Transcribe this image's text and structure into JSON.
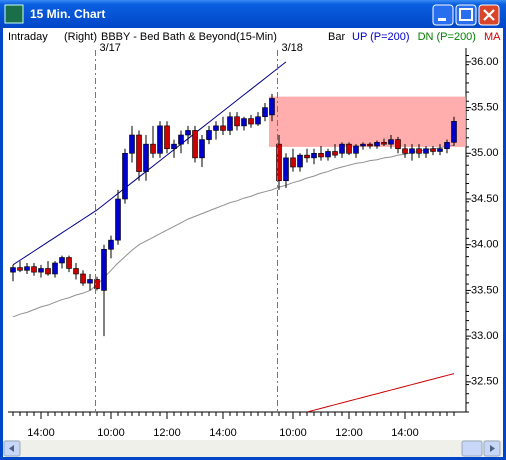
{
  "window": {
    "title": "15 Min. Chart"
  },
  "header": {
    "mode": "Intraday",
    "side": "(Right)",
    "symbol": "BBBY - Bed Bath & Beyond",
    "interval": "(15-Min)",
    "style": "Bar"
  },
  "chart_data": {
    "type": "candlestick",
    "categories": [
      null,
      null,
      null,
      null,
      "14:00",
      null,
      null,
      null,
      null,
      null,
      null,
      null,
      null,
      null,
      "10:00",
      null,
      null,
      null,
      null,
      null,
      null,
      null,
      "12:00",
      null,
      null,
      null,
      null,
      null,
      null,
      null,
      "14:00",
      null,
      null,
      null,
      null,
      null,
      null,
      null,
      null,
      null,
      "10:00",
      null,
      null,
      null,
      null,
      null,
      null,
      null,
      "12:00",
      null,
      null,
      null,
      null,
      null,
      null,
      null,
      "14:00",
      null,
      null,
      null,
      null,
      null,
      null,
      null
    ],
    "sessions": [
      "3/17",
      "3/18"
    ],
    "ohlc": [
      [
        33.7,
        33.78,
        33.6,
        33.75
      ],
      [
        33.75,
        33.82,
        33.7,
        33.72
      ],
      [
        33.72,
        33.8,
        33.68,
        33.76
      ],
      [
        33.76,
        33.8,
        33.66,
        33.7
      ],
      [
        33.7,
        33.78,
        33.64,
        33.74
      ],
      [
        33.74,
        33.82,
        33.66,
        33.68
      ],
      [
        33.68,
        33.82,
        33.64,
        33.8
      ],
      [
        33.8,
        33.88,
        33.74,
        33.86
      ],
      [
        33.86,
        33.88,
        33.7,
        33.74
      ],
      [
        33.74,
        33.8,
        33.62,
        33.68
      ],
      [
        33.68,
        33.72,
        33.55,
        33.58
      ],
      [
        33.58,
        33.68,
        33.5,
        33.62
      ],
      [
        33.62,
        33.65,
        33.5,
        33.52
      ],
      [
        33.5,
        34.0,
        33.0,
        33.95
      ],
      [
        33.95,
        34.1,
        33.85,
        34.05
      ],
      [
        34.05,
        34.6,
        34.0,
        34.5
      ],
      [
        34.5,
        35.05,
        34.45,
        35.0
      ],
      [
        35.0,
        35.3,
        34.9,
        35.2
      ],
      [
        35.2,
        35.25,
        34.7,
        34.8
      ],
      [
        34.8,
        35.2,
        34.7,
        35.1
      ],
      [
        35.1,
        35.3,
        34.95,
        35.0
      ],
      [
        35.0,
        35.35,
        34.95,
        35.3
      ],
      [
        35.3,
        35.35,
        35.0,
        35.05
      ],
      [
        35.05,
        35.15,
        34.95,
        35.1
      ],
      [
        35.1,
        35.25,
        35.0,
        35.2
      ],
      [
        35.2,
        35.3,
        35.1,
        35.25
      ],
      [
        35.25,
        35.3,
        34.9,
        34.95
      ],
      [
        34.95,
        35.2,
        34.85,
        35.15
      ],
      [
        35.15,
        35.3,
        35.1,
        35.25
      ],
      [
        35.25,
        35.35,
        35.15,
        35.3
      ],
      [
        35.3,
        35.4,
        35.2,
        35.25
      ],
      [
        35.25,
        35.45,
        35.2,
        35.4
      ],
      [
        35.4,
        35.45,
        35.25,
        35.3
      ],
      [
        35.3,
        35.4,
        35.25,
        35.38
      ],
      [
        35.38,
        35.42,
        35.28,
        35.32
      ],
      [
        35.32,
        35.45,
        35.3,
        35.4
      ],
      [
        35.4,
        35.55,
        35.35,
        35.5
      ],
      [
        35.42,
        35.65,
        35.35,
        35.6
      ],
      [
        35.1,
        35.2,
        34.6,
        34.7
      ],
      [
        34.7,
        35.0,
        34.62,
        34.95
      ],
      [
        34.95,
        35.05,
        34.8,
        34.85
      ],
      [
        34.85,
        35.0,
        34.8,
        34.98
      ],
      [
        34.98,
        35.05,
        34.9,
        34.95
      ],
      [
        34.95,
        35.05,
        34.88,
        35.0
      ],
      [
        35.0,
        35.08,
        34.92,
        34.96
      ],
      [
        34.96,
        35.05,
        34.92,
        35.02
      ],
      [
        35.02,
        35.1,
        34.95,
        34.98
      ],
      [
        35.0,
        35.12,
        34.95,
        35.1
      ],
      [
        35.1,
        35.12,
        34.98,
        35.0
      ],
      [
        35.0,
        35.1,
        34.95,
        35.08
      ],
      [
        35.08,
        35.12,
        35.04,
        35.1
      ],
      [
        35.1,
        35.12,
        35.05,
        35.08
      ],
      [
        35.08,
        35.14,
        35.05,
        35.12
      ],
      [
        35.12,
        35.16,
        35.08,
        35.1
      ],
      [
        35.1,
        35.2,
        35.05,
        35.15
      ],
      [
        35.15,
        35.18,
        35.0,
        35.05
      ],
      [
        35.05,
        35.1,
        34.95,
        35.0
      ],
      [
        35.0,
        35.1,
        34.92,
        35.05
      ],
      [
        35.05,
        35.1,
        34.95,
        35.0
      ],
      [
        35.0,
        35.08,
        34.95,
        35.05
      ],
      [
        35.05,
        35.08,
        34.98,
        35.02
      ],
      [
        35.02,
        35.1,
        34.98,
        35.05
      ],
      [
        35.05,
        35.15,
        35.0,
        35.12
      ],
      [
        35.12,
        35.4,
        35.08,
        35.35
      ]
    ],
    "up_color": "#0000cc",
    "down_color": "#cc0000",
    "series": [
      {
        "name": "UP (P=200)",
        "color": "#00008b",
        "legend_color": "#0000cc",
        "values": [
          33.78,
          33.83,
          33.88,
          33.93,
          33.98,
          34.03,
          34.08,
          34.13,
          34.18,
          34.23,
          34.28,
          34.33,
          34.38,
          34.44,
          34.5,
          34.56,
          34.62,
          34.68,
          34.74,
          34.8,
          34.86,
          34.92,
          34.98,
          35.04,
          35.1,
          35.16,
          35.22,
          35.28,
          35.34,
          35.4,
          35.46,
          35.52,
          35.58,
          35.64,
          35.7,
          35.76,
          35.82,
          35.88,
          35.94,
          36.0,
          null,
          null,
          null,
          null,
          null,
          null,
          null,
          null,
          null,
          null,
          null,
          null,
          null,
          null,
          null,
          null,
          null,
          null,
          null,
          null,
          null,
          null,
          null,
          null
        ]
      },
      {
        "name": "DN (P=200)",
        "color": "#909090",
        "legend_color": "#008000",
        "values": [
          33.21,
          33.24,
          33.26,
          33.29,
          33.32,
          33.34,
          33.37,
          33.4,
          33.42,
          33.45,
          33.47,
          33.5,
          33.56,
          33.64,
          33.72,
          33.8,
          33.87,
          33.94,
          34.0,
          34.04,
          34.08,
          34.12,
          34.16,
          34.2,
          34.24,
          34.28,
          34.31,
          34.34,
          34.37,
          34.4,
          34.43,
          34.46,
          34.48,
          34.51,
          34.53,
          34.56,
          34.58,
          34.6,
          34.63,
          34.65,
          34.68,
          34.7,
          34.73,
          34.75,
          34.78,
          34.8,
          34.83,
          34.85,
          34.87,
          34.89,
          34.9,
          34.92,
          34.93,
          34.95,
          34.96,
          34.98,
          34.99,
          35.01,
          35.02,
          35.04,
          35.05,
          35.06,
          35.08,
          35.09
        ]
      },
      {
        "name": "MA",
        "color": "#cc0000",
        "legend_color": "#cc0000",
        "values": [
          null,
          null,
          null,
          null,
          null,
          null,
          null,
          null,
          null,
          null,
          null,
          null,
          null,
          null,
          null,
          null,
          null,
          null,
          null,
          null,
          null,
          null,
          null,
          null,
          null,
          null,
          null,
          null,
          null,
          null,
          null,
          null,
          null,
          null,
          null,
          null,
          null,
          null,
          null,
          null,
          null,
          null,
          32.17,
          32.19,
          32.21,
          32.23,
          32.25,
          32.27,
          32.29,
          32.31,
          32.33,
          32.35,
          32.37,
          32.39,
          32.41,
          32.43,
          32.45,
          32.47,
          32.49,
          32.51,
          32.53,
          32.55,
          32.57,
          32.59
        ]
      }
    ],
    "zone": [
      35.07,
      35.62
    ],
    "zone_color": "#ff9999",
    "ylim": [
      32.17,
      36.13
    ],
    "yticks": [
      {
        "value": 32.5,
        "label": "32.50"
      },
      {
        "value": 33,
        "label": "33.00"
      },
      {
        "value": 33.5,
        "label": "33.50"
      },
      {
        "value": 34,
        "label": "34.00"
      },
      {
        "value": 34.5,
        "label": "34.50"
      },
      {
        "value": 35,
        "label": "35.00"
      },
      {
        "value": 35.5,
        "label": "35.50"
      },
      {
        "value": 36,
        "label": "36.00"
      }
    ]
  }
}
